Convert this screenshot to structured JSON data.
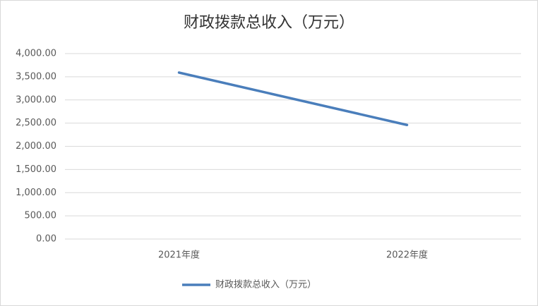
{
  "chart_data": {
    "type": "line",
    "title": "财政拨款总收入（万元）",
    "categories": [
      "2021年度",
      "2022年度"
    ],
    "series": [
      {
        "name": "财政拨款总收入（万元）",
        "color": "#4a7ebb",
        "values": [
          3590,
          2460
        ]
      }
    ],
    "ylim": [
      0,
      4000
    ],
    "yticks": [
      {
        "value": 0,
        "label": "0.00"
      },
      {
        "value": 500,
        "label": "500.00"
      },
      {
        "value": 1000,
        "label": "1,000.00"
      },
      {
        "value": 1500,
        "label": "1,500.00"
      },
      {
        "value": 2000,
        "label": "2,000.00"
      },
      {
        "value": 2500,
        "label": "2,500.00"
      },
      {
        "value": 3000,
        "label": "3,000.00"
      },
      {
        "value": 3500,
        "label": "3,500.00"
      },
      {
        "value": 4000,
        "label": "4,000.00"
      }
    ],
    "grid": true,
    "legend": "bottom"
  }
}
